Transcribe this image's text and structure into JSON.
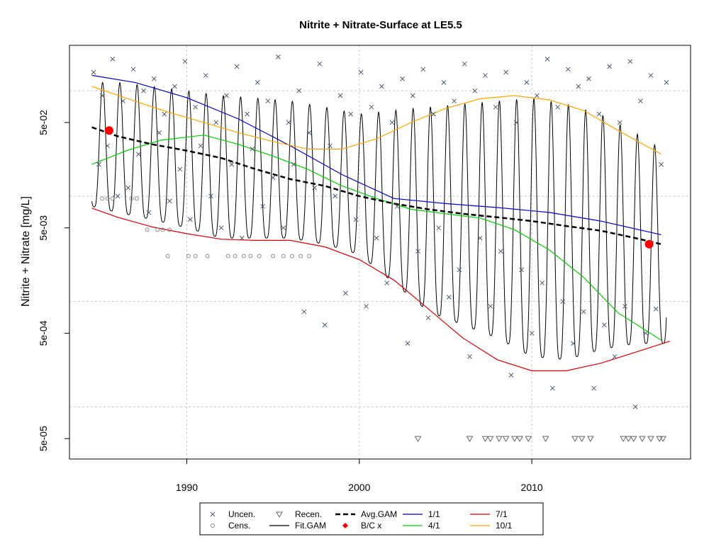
{
  "chart_data": {
    "type": "scatter",
    "title": "Nitrite + Nitrate-Surface at LE5.5",
    "ylabel": "Nitrite + Nitrate [mg/L]",
    "xlabel": "",
    "x_ticks": [
      1990,
      2000,
      2010
    ],
    "x_tick_labels": [
      "1990",
      "2000",
      "2010"
    ],
    "y_ticks": [
      5e-05,
      0.0005,
      0.005,
      0.05
    ],
    "y_tick_labels": [
      "5e-05",
      "5e-04",
      "5e-03",
      "5e-02"
    ],
    "xlim": [
      1983.2,
      2019.2
    ],
    "ylim": [
      3.2e-05,
      0.27
    ],
    "y_scale": "log",
    "grid": true,
    "legend_position": "bottom",
    "colors": {
      "uncen": "#4a5a70",
      "cens": "#888888",
      "recen": "#666666",
      "fit_gam": "#000000",
      "avg_gam": "#000000",
      "bc": "#ff0000",
      "d1_1": "#0000cc",
      "d4_1": "#00cc00",
      "d7_1": "#dd0000",
      "d10_1": "#ffa500"
    },
    "legend": [
      {
        "label": "Uncen.",
        "key": "uncen"
      },
      {
        "label": "Cens.",
        "key": "cens"
      },
      {
        "label": "Recen.",
        "key": "recen"
      },
      {
        "label": "Fit.GAM",
        "key": "fit_gam"
      },
      {
        "label": "Avg.GAM",
        "key": "avg_gam"
      },
      {
        "label": "B/C x",
        "key": "bc"
      },
      {
        "label": "1/1",
        "key": "d1_1"
      },
      {
        "label": "4/1",
        "key": "d4_1"
      },
      {
        "label": "7/1",
        "key": "d7_1"
      },
      {
        "label": "10/1",
        "key": "d10_1"
      }
    ],
    "series": [
      {
        "name": "1/1",
        "color_key": "d1_1",
        "x": [
          1984.5,
          1987,
          1990,
          1993,
          1996,
          1999,
          2002,
          2005,
          2008,
          2011,
          2014,
          2017.5
        ],
        "y": [
          0.14,
          0.12,
          0.086,
          0.054,
          0.03,
          0.016,
          0.0095,
          0.0085,
          0.0078,
          0.007,
          0.0058,
          0.0043
        ]
      },
      {
        "name": "4/1",
        "color_key": "d4_1",
        "x": [
          1984.5,
          1986.5,
          1988.5,
          1991,
          1993,
          1995,
          1997,
          1999,
          2001,
          2003,
          2005,
          2007,
          2009,
          2011,
          2013,
          2015,
          2017.5
        ],
        "y": [
          0.02,
          0.027,
          0.034,
          0.038,
          0.031,
          0.024,
          0.018,
          0.0125,
          0.0095,
          0.0075,
          0.0068,
          0.0062,
          0.0048,
          0.0031,
          0.0017,
          0.00078,
          0.00043
        ]
      },
      {
        "name": "7/1",
        "color_key": "d7_1",
        "x": [
          1984.5,
          1986,
          1988,
          1990,
          1992,
          1994,
          1996,
          1998,
          2000,
          2002,
          2004,
          2006,
          2008,
          2010,
          2012,
          2014,
          2016,
          2018
        ],
        "y": [
          0.0077,
          0.0063,
          0.0051,
          0.0044,
          0.0039,
          0.0038,
          0.0038,
          0.0033,
          0.0025,
          0.0016,
          0.00085,
          0.00045,
          0.00028,
          0.00022,
          0.00022,
          0.00026,
          0.00033,
          0.00042
        ]
      },
      {
        "name": "10/1",
        "color_key": "d10_1",
        "x": [
          1984.5,
          1986.5,
          1989,
          1991,
          1993,
          1995,
          1997,
          1999,
          2001,
          2003,
          2005,
          2007,
          2009,
          2011,
          2013,
          2015,
          2017.5
        ],
        "y": [
          0.11,
          0.085,
          0.062,
          0.05,
          0.04,
          0.033,
          0.028,
          0.028,
          0.035,
          0.05,
          0.068,
          0.084,
          0.09,
          0.082,
          0.065,
          0.042,
          0.025
        ]
      }
    ],
    "avg_gam": {
      "x": [
        1984.5,
        1986,
        1988,
        1990,
        1992,
        1994,
        1996,
        1998,
        2000,
        2002,
        2004,
        2006,
        2008,
        2010,
        2012,
        2014,
        2016,
        2017.5
      ],
      "y": [
        0.045,
        0.037,
        0.031,
        0.027,
        0.023,
        0.018,
        0.0145,
        0.0125,
        0.01,
        0.0085,
        0.0075,
        0.0068,
        0.0063,
        0.0058,
        0.0052,
        0.0047,
        0.004,
        0.0035
      ]
    },
    "bc_points": {
      "x": [
        1985.5,
        2016.8
      ],
      "y": [
        0.042,
        0.0035
      ]
    },
    "fit_gam_envelope": {
      "x": [
        1984.5,
        1986,
        1988,
        1990,
        1992,
        1994,
        1996,
        1998,
        2000,
        2002,
        2004,
        2006,
        2008,
        2010,
        2012,
        2014,
        2016,
        2018
      ],
      "high": [
        0.12,
        0.12,
        0.11,
        0.1,
        0.09,
        0.085,
        0.08,
        0.07,
        0.06,
        0.065,
        0.07,
        0.075,
        0.08,
        0.085,
        0.075,
        0.06,
        0.04,
        0.025
      ],
      "low": [
        0.008,
        0.007,
        0.006,
        0.005,
        0.004,
        0.004,
        0.004,
        0.0035,
        0.0028,
        0.0015,
        0.0008,
        0.0006,
        0.00045,
        0.0003,
        0.00028,
        0.00035,
        0.0004,
        0.0004
      ]
    },
    "uncen_points": {
      "x": [
        1984.6,
        1984.9,
        1985.1,
        1985.4,
        1985.7,
        1986.0,
        1986.3,
        1986.6,
        1986.9,
        1987.2,
        1987.5,
        1987.8,
        1988.1,
        1988.4,
        1988.7,
        1989.0,
        1989.3,
        1989.6,
        1989.9,
        1990.2,
        1990.5,
        1990.8,
        1991.1,
        1991.4,
        1991.7,
        1992.0,
        1992.3,
        1992.6,
        1992.9,
        1993.2,
        1993.5,
        1993.8,
        1994.1,
        1994.4,
        1994.7,
        1995.0,
        1995.3,
        1995.6,
        1995.9,
        1996.2,
        1996.5,
        1996.8,
        1997.1,
        1997.4,
        1997.7,
        1998.0,
        1998.3,
        1998.6,
        1998.9,
        1999.2,
        1999.5,
        1999.8,
        2000.1,
        2000.4,
        2000.7,
        2001.0,
        2001.3,
        2001.6,
        2001.9,
        2002.2,
        2002.5,
        2002.8,
        2003.1,
        2003.4,
        2003.7,
        2004.0,
        2004.3,
        2004.6,
        2004.9,
        2005.2,
        2005.5,
        2005.8,
        2006.1,
        2006.4,
        2006.7,
        2007.0,
        2007.3,
        2007.6,
        2007.9,
        2008.2,
        2008.5,
        2008.8,
        2009.1,
        2009.4,
        2009.7,
        2010.0,
        2010.3,
        2010.6,
        2010.9,
        2011.2,
        2011.5,
        2011.8,
        2012.1,
        2012.4,
        2012.7,
        2013.0,
        2013.3,
        2013.6,
        2013.9,
        2014.2,
        2014.5,
        2014.8,
        2015.1,
        2015.4,
        2015.7,
        2016.0,
        2016.3,
        2016.6,
        2016.9,
        2017.2,
        2017.5,
        2017.8
      ],
      "y": [
        0.15,
        0.02,
        0.09,
        0.03,
        0.2,
        0.01,
        0.08,
        0.012,
        0.16,
        0.025,
        0.1,
        0.007,
        0.13,
        0.04,
        0.06,
        0.009,
        0.11,
        0.018,
        0.19,
        0.006,
        0.07,
        0.03,
        0.14,
        0.01,
        0.05,
        0.005,
        0.09,
        0.02,
        0.17,
        0.004,
        0.06,
        0.028,
        0.12,
        0.008,
        0.08,
        0.015,
        0.21,
        0.005,
        0.05,
        0.02,
        0.1,
        0.0008,
        0.04,
        0.012,
        0.18,
        0.0006,
        0.03,
        0.01,
        0.09,
        0.0012,
        0.06,
        0.006,
        0.15,
        0.0009,
        0.07,
        0.004,
        0.11,
        0.0015,
        0.05,
        0.008,
        0.13,
        0.0004,
        0.09,
        0.003,
        0.16,
        0.0007,
        0.06,
        0.005,
        0.12,
        0.0011,
        0.08,
        0.002,
        0.18,
        0.0003,
        0.1,
        0.004,
        0.14,
        0.0009,
        0.07,
        0.003,
        0.15,
        0.0002,
        0.05,
        0.002,
        0.12,
        0.0005,
        0.09,
        0.0015,
        0.2,
        0.00015,
        0.07,
        0.001,
        0.16,
        0.0004,
        0.11,
        0.0008,
        0.13,
        0.00015,
        0.06,
        0.0006,
        0.17,
        0.0003,
        0.05,
        0.0009,
        0.19,
        0.0001,
        0.08,
        0.0005,
        0.14,
        0.00085,
        0.02,
        0.12
      ]
    },
    "cens_points": {
      "x": [
        1985.1,
        1985.4,
        1985.7,
        1986.8,
        1987.1,
        1988.3,
        1988.6,
        1989.0,
        1990.1,
        1990.5,
        1991.2,
        1992.4,
        1992.8,
        1993.3,
        1993.7,
        1994.2,
        1995.0,
        1995.6,
        1996.1,
        1996.6,
        1997.1,
        1988.9,
        1987.7
      ],
      "y": [
        0.0095,
        0.0095,
        0.0095,
        0.0095,
        0.0095,
        0.0048,
        0.0048,
        0.0048,
        0.0027,
        0.0027,
        0.0027,
        0.0027,
        0.0027,
        0.0027,
        0.0027,
        0.0027,
        0.0027,
        0.0027,
        0.0027,
        0.0027,
        0.0027,
        0.0027,
        0.0048
      ]
    },
    "recen_points": {
      "x": [
        2003.4,
        2006.4,
        2007.3,
        2007.6,
        2008.1,
        2008.5,
        2009.0,
        2009.3,
        2009.8,
        2010.8,
        2012.5,
        2012.9,
        2013.4,
        2015.3,
        2015.6,
        2015.9,
        2016.4,
        2016.9,
        2017.4,
        2017.6
      ],
      "y": [
        5e-05,
        5e-05,
        5e-05,
        5e-05,
        5e-05,
        5e-05,
        5e-05,
        5e-05,
        5e-05,
        5e-05,
        5e-05,
        5e-05,
        5e-05,
        5e-05,
        5e-05,
        5e-05,
        5e-05,
        5e-05,
        5e-05,
        5e-05
      ]
    }
  }
}
